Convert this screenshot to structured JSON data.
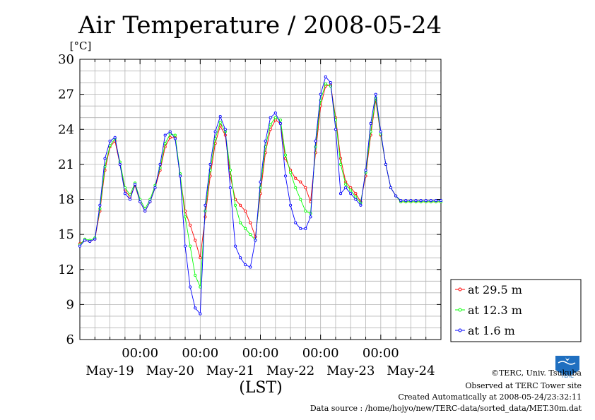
{
  "chart_data": {
    "type": "line",
    "title": "Air Temperature / 2008-05-24",
    "unit_label": "[°C]",
    "xlabel": "(LST)",
    "ylim": [
      6,
      30
    ],
    "yticks": [
      "30",
      "27",
      "24",
      "21",
      "18",
      "15",
      "12",
      "9",
      "6"
    ],
    "x_time_ticks": [
      "00:00",
      "00:00",
      "00:00",
      "00:00",
      "00:00"
    ],
    "x_day_labels": [
      "May-19",
      "May-20",
      "May-21",
      "May-22",
      "May-23",
      "May-24"
    ],
    "x_range_hours": [
      0,
      144
    ],
    "grid": true,
    "legend_position": "right",
    "series": [
      {
        "name": "at 29.5 m",
        "color": "#ff0000",
        "x": [
          0,
          2,
          4,
          6,
          8,
          10,
          12,
          14,
          16,
          18,
          20,
          22,
          24,
          26,
          28,
          30,
          32,
          34,
          36,
          38,
          40,
          42,
          44,
          46,
          48,
          50,
          52,
          54,
          56,
          58,
          60,
          62,
          64,
          66,
          68,
          70,
          72,
          74,
          76,
          78,
          80,
          82,
          84,
          86,
          88,
          90,
          92,
          94,
          96,
          98,
          100,
          102,
          104,
          106,
          108,
          110,
          112,
          114,
          116,
          118,
          120,
          122,
          124,
          126,
          128,
          130,
          132,
          134,
          136,
          138,
          140,
          142,
          144
        ],
        "y": [
          14.2,
          14.5,
          14.4,
          14.6,
          17.0,
          20.5,
          22.5,
          23.0,
          21.0,
          18.8,
          18.2,
          19.2,
          17.8,
          17.0,
          17.8,
          19.0,
          20.5,
          22.5,
          23.3,
          23.3,
          20.0,
          17.0,
          15.8,
          14.5,
          13.0,
          16.5,
          20.0,
          22.8,
          24.3,
          23.5,
          20.0,
          18.0,
          17.5,
          17.0,
          16.0,
          14.8,
          18.5,
          22.0,
          24.0,
          24.8,
          24.5,
          21.5,
          20.5,
          19.8,
          19.5,
          19.0,
          17.8,
          22.0,
          26.0,
          27.7,
          27.8,
          25.0,
          21.5,
          19.5,
          19.0,
          18.5,
          17.8,
          20.0,
          23.5,
          26.5,
          23.5,
          21.0,
          19.0,
          18.3,
          17.8,
          17.8,
          17.8,
          17.8,
          17.8,
          17.8,
          17.8,
          17.8,
          17.8
        ]
      },
      {
        "name": "at 12.3 m",
        "color": "#00ff00",
        "x": [
          0,
          2,
          4,
          6,
          8,
          10,
          12,
          14,
          16,
          18,
          20,
          22,
          24,
          26,
          28,
          30,
          32,
          34,
          36,
          38,
          40,
          42,
          44,
          46,
          48,
          50,
          52,
          54,
          56,
          58,
          60,
          62,
          64,
          66,
          68,
          70,
          72,
          74,
          76,
          78,
          80,
          82,
          84,
          86,
          88,
          90,
          92,
          94,
          96,
          98,
          100,
          102,
          104,
          106,
          108,
          110,
          112,
          114,
          116,
          118,
          120,
          122,
          124,
          126,
          128,
          130,
          132,
          134,
          136,
          138,
          140,
          142,
          144
        ],
        "y": [
          14.1,
          14.6,
          14.5,
          14.7,
          17.2,
          20.8,
          22.6,
          23.2,
          21.2,
          19.0,
          18.4,
          19.4,
          18.0,
          17.2,
          18.0,
          19.2,
          20.7,
          22.8,
          23.6,
          23.5,
          20.2,
          16.5,
          14.0,
          11.5,
          10.5,
          17.0,
          20.5,
          23.2,
          24.6,
          23.8,
          20.5,
          17.5,
          16.0,
          15.5,
          15.0,
          14.5,
          19.0,
          22.5,
          24.4,
          25.0,
          24.8,
          21.8,
          20.3,
          19.0,
          18.0,
          17.0,
          16.8,
          22.5,
          26.5,
          27.9,
          27.7,
          24.8,
          21.0,
          19.3,
          18.8,
          18.2,
          17.7,
          20.3,
          23.8,
          26.7,
          23.6,
          21.0,
          19.0,
          18.3,
          17.8,
          17.8,
          17.8,
          17.8,
          17.8,
          17.8,
          17.8,
          17.8,
          17.8
        ]
      },
      {
        "name": "at 1.6 m",
        "color": "#0000ff",
        "x": [
          0,
          2,
          4,
          6,
          8,
          10,
          12,
          14,
          16,
          18,
          20,
          22,
          24,
          26,
          28,
          30,
          32,
          34,
          36,
          38,
          40,
          42,
          44,
          46,
          48,
          50,
          52,
          54,
          56,
          58,
          60,
          62,
          64,
          66,
          68,
          70,
          72,
          74,
          76,
          78,
          80,
          82,
          84,
          86,
          88,
          90,
          92,
          94,
          96,
          98,
          100,
          102,
          104,
          106,
          108,
          110,
          112,
          114,
          116,
          118,
          120,
          122,
          124,
          126,
          128,
          130,
          132,
          134,
          136,
          138,
          140,
          142,
          144
        ],
        "y": [
          14.0,
          14.5,
          14.4,
          14.6,
          17.5,
          21.5,
          23.0,
          23.3,
          21.0,
          18.5,
          18.0,
          19.3,
          17.8,
          17.0,
          17.8,
          19.0,
          21.0,
          23.5,
          23.8,
          23.2,
          20.0,
          14.0,
          10.5,
          8.7,
          8.2,
          17.5,
          21.0,
          23.8,
          25.1,
          24.0,
          19.0,
          14.0,
          13.0,
          12.4,
          12.2,
          14.5,
          19.5,
          23.0,
          25.0,
          25.4,
          24.5,
          20.0,
          17.5,
          16.0,
          15.5,
          15.5,
          16.5,
          23.0,
          27.0,
          28.5,
          28.0,
          24.0,
          18.5,
          19.0,
          18.5,
          18.0,
          17.5,
          20.5,
          24.5,
          27.0,
          23.8,
          21.0,
          19.0,
          18.3,
          17.9,
          17.9,
          17.9,
          17.9,
          17.9,
          17.9,
          17.9,
          17.9,
          17.9
        ]
      }
    ]
  },
  "footer": {
    "copyright": "©TERC, Univ. Tsukuba",
    "observed": "Observed at TERC Tower site",
    "created": "Created Automatically at 2008-05-24/23:32:11",
    "source": "Data source : /home/hojyo/new/TERC-data/sorted_data/MET.30m.dat"
  },
  "logo": {
    "text": "TERC",
    "color": "#1f6fc0"
  }
}
